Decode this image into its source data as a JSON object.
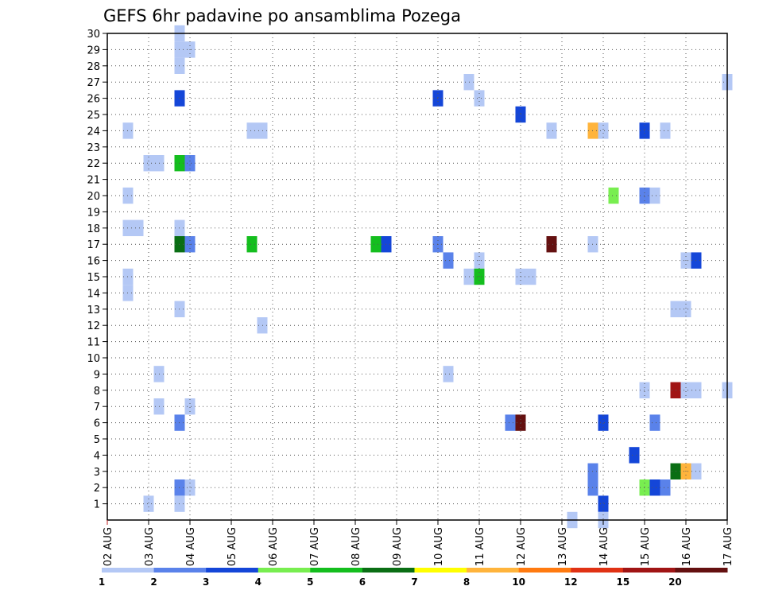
{
  "chart_data": {
    "type": "heatmap",
    "title": "GEFS 6hr padavine po ansamblima Pozega",
    "x_tick_labels": [
      "02 AUG",
      "03 AUG",
      "04 AUG",
      "05 AUG",
      "06 AUG",
      "07 AUG",
      "08 AUG",
      "09 AUG",
      "10 AUG",
      "11 AUG",
      "12 AUG",
      "13 AUG",
      "14 AUG",
      "15 AUG",
      "16 AUG",
      "17 AUG"
    ],
    "y_tick_labels": [
      "1",
      "2",
      "3",
      "4",
      "5",
      "6",
      "7",
      "8",
      "9",
      "10",
      "11",
      "12",
      "13",
      "14",
      "15",
      "16",
      "17",
      "18",
      "19",
      "20",
      "21",
      "22",
      "23",
      "24",
      "25",
      "26",
      "27",
      "28",
      "29",
      "30"
    ],
    "x_range_days": [
      0,
      15
    ],
    "y_range": [
      0,
      30
    ],
    "grid": true,
    "colorbar": {
      "labels": [
        "1",
        "2",
        "3",
        "4",
        "5",
        "6",
        "7",
        "8",
        "10",
        "12",
        "15",
        "20"
      ],
      "colors": [
        "#b4c8f5",
        "#5a82ea",
        "#1446d8",
        "#78ee50",
        "#14be1e",
        "#0a6e14",
        "#ffff00",
        "#ffb43c",
        "#ff7a10",
        "#e03214",
        "#a01414",
        "#641010"
      ]
    },
    "cells": [
      [
        1.75,
        30,
        1
      ],
      [
        1.75,
        29,
        1
      ],
      [
        1.75,
        28,
        1
      ],
      [
        2.0,
        29,
        1
      ],
      [
        1.75,
        26,
        3
      ],
      [
        8.0,
        26,
        3
      ],
      [
        8.75,
        27,
        1
      ],
      [
        9.0,
        26,
        1
      ],
      [
        10.0,
        25,
        3
      ],
      [
        0.5,
        24,
        1
      ],
      [
        3.5,
        24,
        1
      ],
      [
        3.75,
        24,
        1
      ],
      [
        10.75,
        24,
        1
      ],
      [
        11.75,
        24,
        8
      ],
      [
        12.0,
        24,
        1
      ],
      [
        13.0,
        24,
        3
      ],
      [
        13.5,
        24,
        1
      ],
      [
        15.0,
        27,
        1
      ],
      [
        1.0,
        22,
        1
      ],
      [
        1.25,
        22,
        1
      ],
      [
        1.75,
        22,
        5
      ],
      [
        2.0,
        22,
        2
      ],
      [
        0.5,
        20,
        1
      ],
      [
        12.25,
        20,
        4
      ],
      [
        13.0,
        20,
        2
      ],
      [
        13.25,
        20,
        1
      ],
      [
        0.5,
        18,
        1
      ],
      [
        0.75,
        18,
        1
      ],
      [
        1.75,
        18,
        1
      ],
      [
        1.75,
        17,
        6
      ],
      [
        2.0,
        17,
        2
      ],
      [
        3.5,
        17,
        5
      ],
      [
        6.5,
        17,
        5
      ],
      [
        6.75,
        17,
        3
      ],
      [
        8.0,
        17,
        2
      ],
      [
        10.75,
        17,
        20
      ],
      [
        11.75,
        17,
        1
      ],
      [
        8.25,
        16,
        2
      ],
      [
        9.0,
        16,
        1
      ],
      [
        14.0,
        16,
        1
      ],
      [
        14.25,
        16,
        3
      ],
      [
        0.5,
        15,
        1
      ],
      [
        8.75,
        15,
        1
      ],
      [
        9.0,
        15,
        5
      ],
      [
        10.0,
        15,
        1
      ],
      [
        10.25,
        15,
        1
      ],
      [
        0.5,
        14,
        1
      ],
      [
        1.75,
        13,
        1
      ],
      [
        13.75,
        13,
        1
      ],
      [
        14.0,
        13,
        1
      ],
      [
        3.75,
        12,
        1
      ],
      [
        1.25,
        9,
        1
      ],
      [
        8.25,
        9,
        1
      ],
      [
        13.0,
        8,
        1
      ],
      [
        13.75,
        8,
        15
      ],
      [
        14.0,
        8,
        1
      ],
      [
        14.25,
        8,
        1
      ],
      [
        15.0,
        8,
        1
      ],
      [
        1.25,
        7,
        1
      ],
      [
        2.0,
        7,
        1
      ],
      [
        1.75,
        6,
        2
      ],
      [
        9.75,
        6,
        2
      ],
      [
        10.0,
        6,
        20
      ],
      [
        12.0,
        6,
        3
      ],
      [
        13.25,
        6,
        2
      ],
      [
        12.75,
        4,
        3
      ],
      [
        11.75,
        3,
        2
      ],
      [
        13.75,
        3,
        6
      ],
      [
        14.0,
        3,
        8
      ],
      [
        14.25,
        3,
        1
      ],
      [
        1.75,
        2,
        2
      ],
      [
        2.0,
        2,
        1
      ],
      [
        11.75,
        2,
        2
      ],
      [
        13.0,
        2,
        4
      ],
      [
        13.25,
        2,
        3
      ],
      [
        13.5,
        2,
        2
      ],
      [
        1.0,
        1,
        1
      ],
      [
        1.75,
        1,
        1
      ],
      [
        12.0,
        1,
        3
      ],
      [
        11.25,
        0,
        1
      ],
      [
        12.0,
        0,
        1
      ]
    ]
  }
}
